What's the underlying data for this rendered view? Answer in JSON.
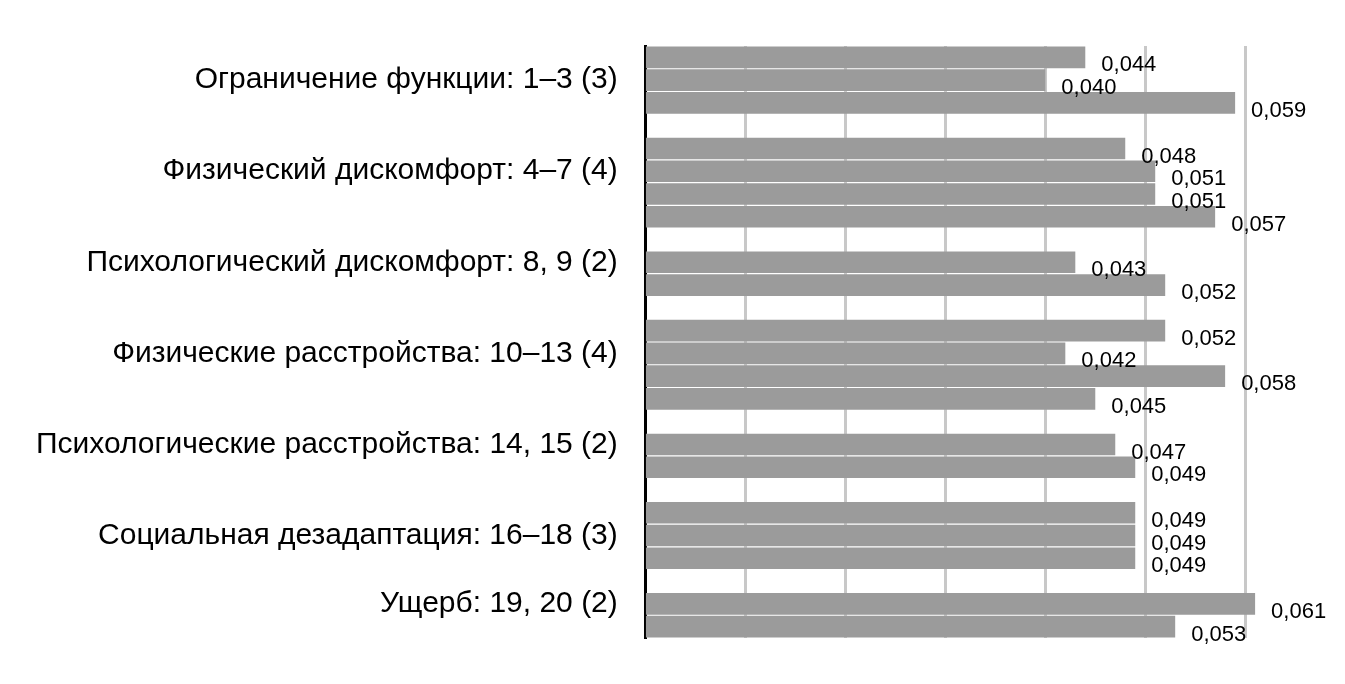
{
  "chart_data": {
    "type": "bar",
    "orientation": "horizontal",
    "categories": [
      null,
      "Ограничение функции: 1–3 (3)",
      null,
      null,
      null,
      "Физический дискомфорт: 4–7 (4)",
      null,
      null,
      null,
      "Психологический дискомфорт: 8, 9 (2)",
      null,
      null,
      null,
      "Физические расстройства: 10–13 (4)",
      null,
      null,
      null,
      "Психологические расстройства: 14, 15 (2)",
      null,
      null,
      null,
      "Социальная дезадаптация: 16–18 (3)",
      null,
      null,
      "Ущерб: 19, 20 (2)",
      null
    ],
    "values": [
      0.044,
      0.04,
      0.059,
      null,
      0.048,
      0.051,
      0.051,
      0.057,
      null,
      0.043,
      0.052,
      null,
      0.052,
      0.042,
      0.058,
      0.045,
      null,
      0.047,
      0.049,
      null,
      0.049,
      0.049,
      0.049,
      null,
      0.061,
      0.053
    ],
    "value_labels": [
      "0,044",
      "0,040",
      "0,059",
      null,
      "0,048",
      "0,051",
      "0,051",
      "0,057",
      null,
      "0,043",
      "0,052",
      null,
      "0,052",
      "0,042",
      "0,058",
      "0,045",
      null,
      "0,047",
      "0,049",
      null,
      "0,049",
      "0,049",
      "0,049",
      null,
      "0,061",
      "0,053"
    ],
    "color": "#9b9b9b",
    "xticks": [
      {
        "value": 0.01,
        "label": null
      },
      {
        "value": 0.02,
        "label": null
      },
      {
        "value": 0.03,
        "label": null
      },
      {
        "value": 0.04,
        "label": null
      },
      {
        "value": 0.05,
        "label": null
      },
      {
        "value": 0.06,
        "label": null
      }
    ],
    "grid": "x",
    "tick_labels": "y",
    "legend": false
  }
}
